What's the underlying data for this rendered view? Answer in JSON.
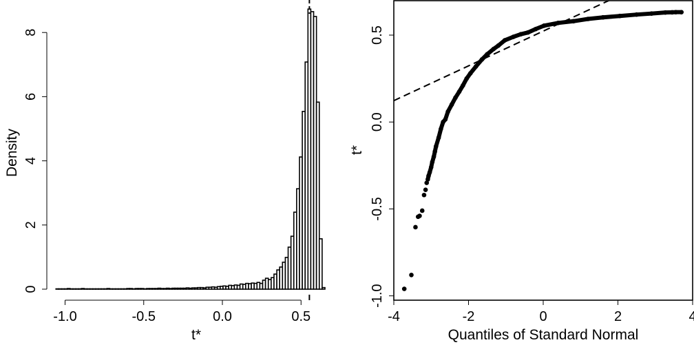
{
  "chart_data": [
    {
      "type": "bar",
      "subtype": "histogram",
      "xlabel": "t*",
      "ylabel": "Density",
      "xlim": [
        -1.1,
        0.7
      ],
      "ylim": [
        0,
        8.8
      ],
      "xticks": [
        -1.0,
        -0.5,
        0.0,
        0.5
      ],
      "xtick_labels": [
        "-1.0",
        "-0.5",
        "0.0",
        "0.5"
      ],
      "yticks": [
        0,
        2,
        4,
        6,
        8
      ],
      "ytick_labels": [
        "0",
        "2",
        "4",
        "6",
        "8"
      ],
      "bin_start": -1.058,
      "bin_width": 0.018,
      "values": [
        0.01,
        0.01,
        0.01,
        0.01,
        0.02,
        0.01,
        0.01,
        0.01,
        0.01,
        0.02,
        0.01,
        0.01,
        0.01,
        0.01,
        0.01,
        0.01,
        0.01,
        0.01,
        0.02,
        0.01,
        0.01,
        0.01,
        0.01,
        0.01,
        0.01,
        0.02,
        0.02,
        0.01,
        0.02,
        0.02,
        0.02,
        0.01,
        0.02,
        0.02,
        0.02,
        0.02,
        0.03,
        0.02,
        0.02,
        0.03,
        0.02,
        0.03,
        0.03,
        0.03,
        0.03,
        0.03,
        0.04,
        0.03,
        0.04,
        0.04,
        0.05,
        0.05,
        0.04,
        0.06,
        0.06,
        0.07,
        0.06,
        0.08,
        0.09,
        0.1,
        0.09,
        0.12,
        0.11,
        0.13,
        0.12,
        0.16,
        0.15,
        0.18,
        0.17,
        0.19,
        0.18,
        0.21,
        0.18,
        0.28,
        0.34,
        0.3,
        0.36,
        0.47,
        0.6,
        0.69,
        0.84,
        0.99,
        1.31,
        1.65,
        2.4,
        3.13,
        4.12,
        5.54,
        7.08,
        8.73,
        8.65,
        8.5,
        5.83,
        1.57,
        0.05
      ],
      "reference_line": {
        "x": 0.553,
        "style": "dashed"
      }
    },
    {
      "type": "scatter",
      "subtype": "normal-qq",
      "xlabel": "Quantiles of Standard Normal",
      "ylabel": "t*",
      "xlim": [
        -4,
        4
      ],
      "ylim": [
        -1.025,
        0.698
      ],
      "xticks": [
        -4,
        -2,
        0,
        2,
        4
      ],
      "xtick_labels": [
        "-4",
        "-2",
        "0",
        "2",
        "4"
      ],
      "yticks": [
        -1.0,
        -0.5,
        0.0,
        0.5
      ],
      "ytick_labels": [
        "-1.0",
        "-0.5",
        "0.0",
        "0.5"
      ],
      "points": [
        [
          -3.72,
          -0.96
        ],
        [
          -3.53,
          -0.88
        ],
        [
          -3.42,
          -0.605
        ],
        [
          -3.35,
          -0.545
        ],
        [
          -3.31,
          -0.54
        ],
        [
          -3.24,
          -0.51
        ],
        [
          -3.19,
          -0.42
        ],
        [
          -3.15,
          -0.39
        ],
        [
          -3.12,
          -0.35
        ],
        [
          -3.09,
          -0.33
        ],
        [
          -3.07,
          -0.31
        ],
        [
          -3.04,
          -0.29
        ],
        [
          -3.0,
          -0.26
        ],
        [
          -2.97,
          -0.23
        ],
        [
          -2.93,
          -0.2
        ],
        [
          -2.9,
          -0.17
        ],
        [
          -2.87,
          -0.14
        ],
        [
          -2.8,
          -0.09
        ],
        [
          -2.74,
          -0.04
        ],
        [
          -2.68,
          0.0
        ],
        [
          -2.62,
          0.015
        ],
        [
          -2.55,
          0.06
        ],
        [
          -2.45,
          0.1
        ],
        [
          -2.35,
          0.14
        ],
        [
          -2.25,
          0.174
        ],
        [
          -2.15,
          0.21
        ],
        [
          -2.05,
          0.25
        ],
        [
          -1.95,
          0.28
        ],
        [
          -1.8,
          0.32
        ],
        [
          -1.64,
          0.36
        ],
        [
          -1.5,
          0.39
        ],
        [
          -1.33,
          0.42
        ],
        [
          -1.2,
          0.44
        ],
        [
          -1.03,
          0.47
        ],
        [
          -0.8,
          0.49
        ],
        [
          -0.6,
          0.505
        ],
        [
          -0.41,
          0.515
        ],
        [
          -0.2,
          0.535
        ],
        [
          0.02,
          0.554
        ],
        [
          0.4,
          0.57
        ],
        [
          0.81,
          0.58
        ],
        [
          1.2,
          0.593
        ],
        [
          1.6,
          0.602
        ],
        [
          2.05,
          0.61
        ],
        [
          2.5,
          0.618
        ],
        [
          2.9,
          0.624
        ],
        [
          3.27,
          0.63
        ],
        [
          3.45,
          0.631
        ],
        [
          3.55,
          0.632
        ],
        [
          3.7,
          0.632
        ]
      ],
      "reference_line": {
        "intercept": 0.523,
        "slope": 0.1,
        "style": "dashed"
      }
    }
  ]
}
